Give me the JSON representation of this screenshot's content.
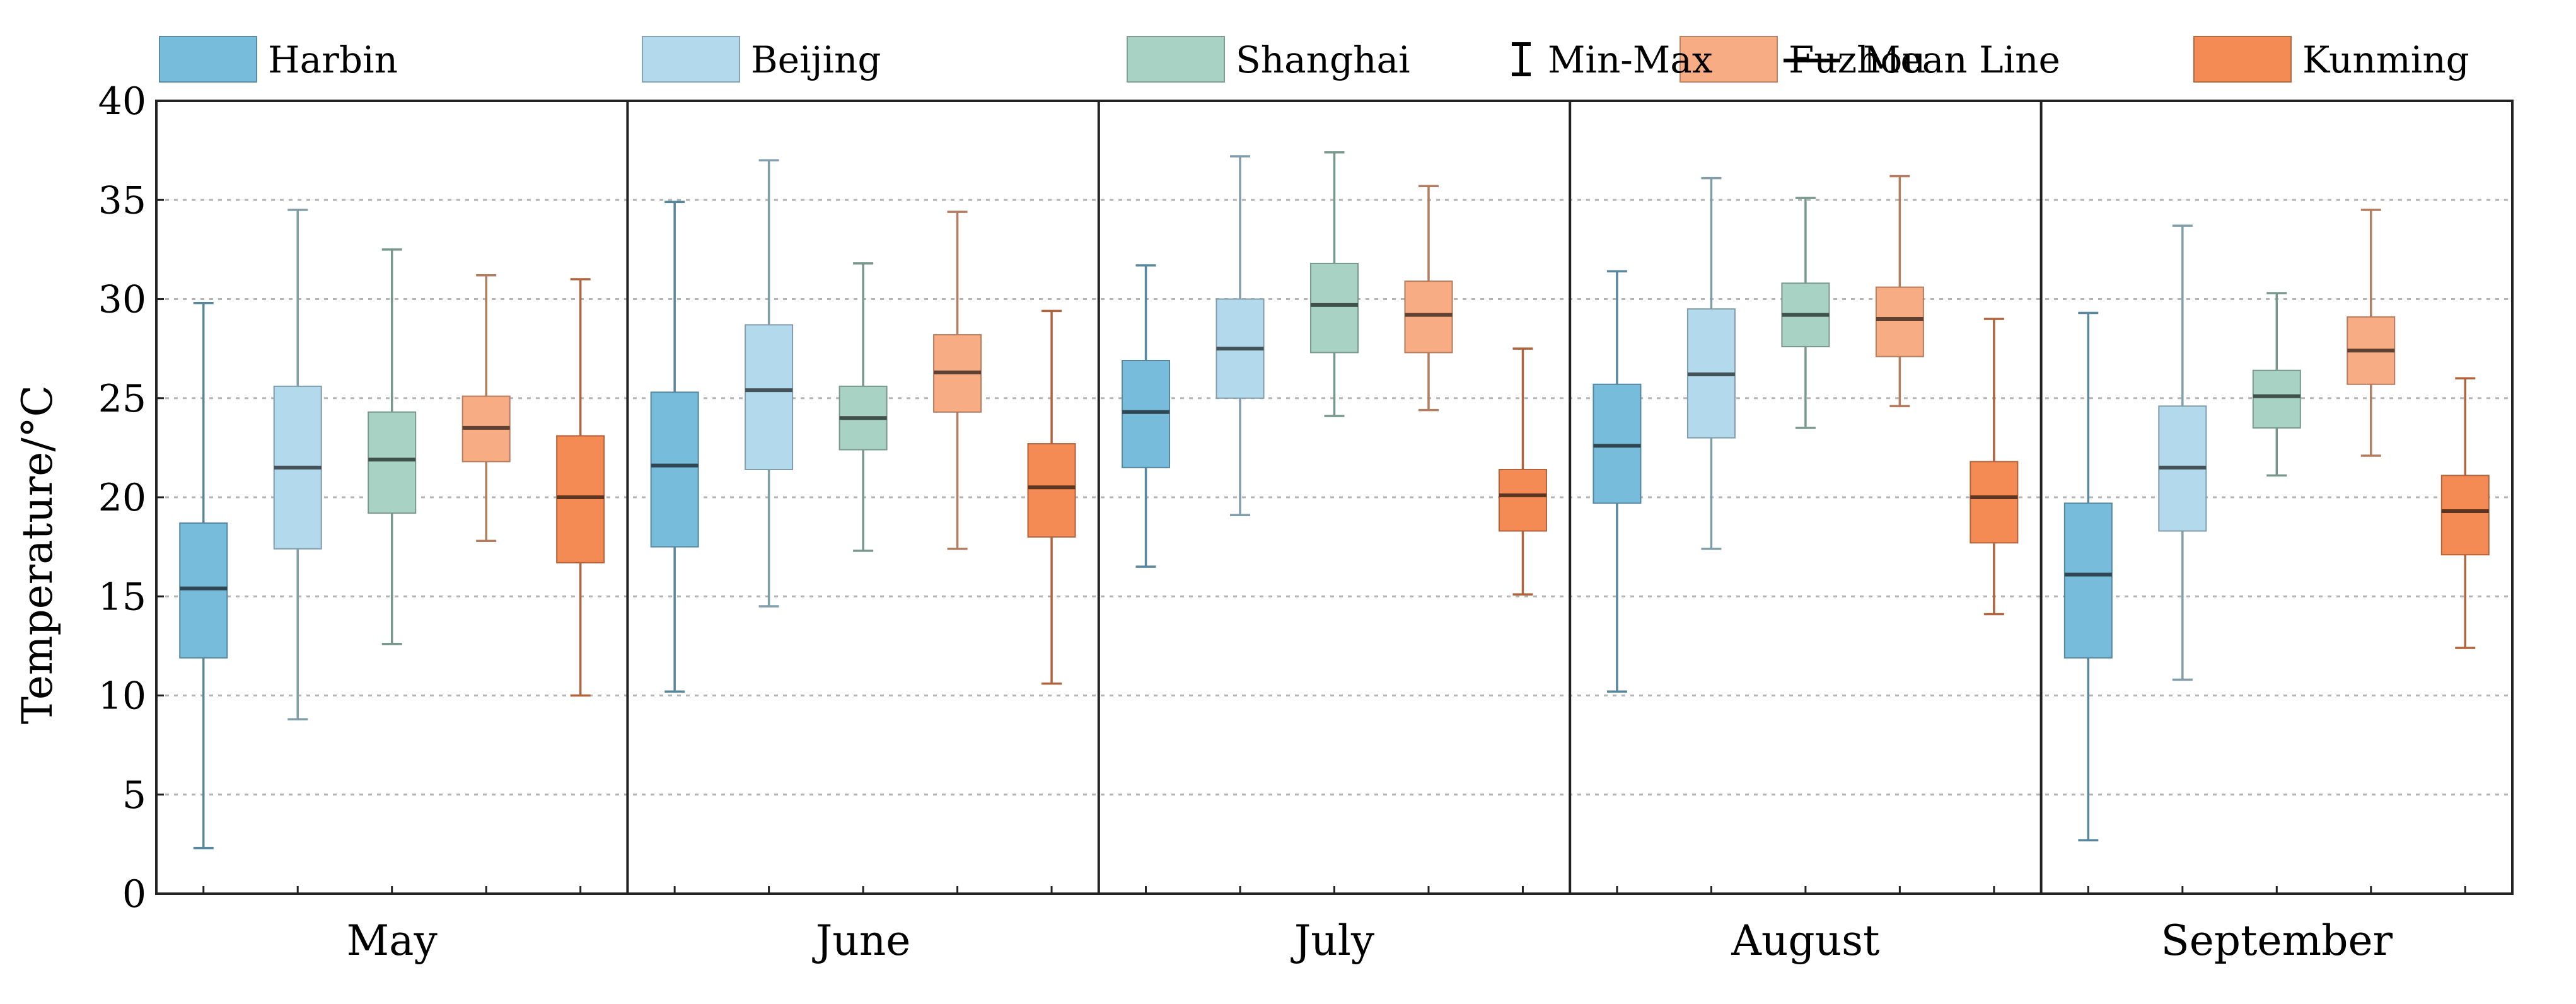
{
  "chart_data": {
    "type": "box",
    "ylabel": "Temperature/°C",
    "xlabel": "",
    "ylim": [
      0,
      40
    ],
    "yticks": [
      "0",
      "5",
      "10",
      "15",
      "20",
      "25",
      "30",
      "35",
      "40"
    ],
    "grid": "horizontal-dotted",
    "legend_position": "top",
    "legend": {
      "series": [
        "Harbin",
        "Beijing",
        "Shanghai",
        "Fuzhou",
        "Kunming"
      ],
      "minmax_label": "Min-Max",
      "mean_label": "Mean Line"
    },
    "categories": [
      "May",
      "June",
      "July",
      "August",
      "September"
    ],
    "series": [
      {
        "name": "Harbin",
        "color": "#78BCDB",
        "boxes": [
          {
            "min": 2.3,
            "q1": 11.9,
            "mean": 15.4,
            "q3": 18.7,
            "max": 29.8
          },
          {
            "min": 10.2,
            "q1": 17.5,
            "mean": 21.6,
            "q3": 25.3,
            "max": 34.9
          },
          {
            "min": 16.5,
            "q1": 21.5,
            "mean": 24.3,
            "q3": 26.9,
            "max": 31.7
          },
          {
            "min": 10.2,
            "q1": 19.7,
            "mean": 22.6,
            "q3": 25.7,
            "max": 31.4
          },
          {
            "min": 2.7,
            "q1": 11.9,
            "mean": 16.1,
            "q3": 19.7,
            "max": 29.3
          }
        ]
      },
      {
        "name": "Beijing",
        "color": "#B3DAEC",
        "boxes": [
          {
            "min": 8.8,
            "q1": 17.4,
            "mean": 21.5,
            "q3": 25.6,
            "max": 34.5
          },
          {
            "min": 14.5,
            "q1": 21.4,
            "mean": 25.4,
            "q3": 28.7,
            "max": 37.0
          },
          {
            "min": 19.1,
            "q1": 25.0,
            "mean": 27.5,
            "q3": 30.0,
            "max": 37.2
          },
          {
            "min": 17.4,
            "q1": 23.0,
            "mean": 26.2,
            "q3": 29.5,
            "max": 36.1
          },
          {
            "min": 10.8,
            "q1": 18.3,
            "mean": 21.5,
            "q3": 24.6,
            "max": 33.7
          }
        ]
      },
      {
        "name": "Shanghai",
        "color": "#A8D3C4",
        "boxes": [
          {
            "min": 12.6,
            "q1": 19.2,
            "mean": 21.9,
            "q3": 24.3,
            "max": 32.5
          },
          {
            "min": 17.3,
            "q1": 22.4,
            "mean": 24.0,
            "q3": 25.6,
            "max": 31.8
          },
          {
            "min": 24.1,
            "q1": 27.3,
            "mean": 29.7,
            "q3": 31.8,
            "max": 37.4
          },
          {
            "min": 23.5,
            "q1": 27.6,
            "mean": 29.2,
            "q3": 30.8,
            "max": 35.1
          },
          {
            "min": 21.1,
            "q1": 23.5,
            "mean": 25.1,
            "q3": 26.4,
            "max": 30.3
          }
        ]
      },
      {
        "name": "Fuzhou",
        "color": "#F8AC84",
        "boxes": [
          {
            "min": 17.8,
            "q1": 21.8,
            "mean": 23.5,
            "q3": 25.1,
            "max": 31.2
          },
          {
            "min": 17.4,
            "q1": 24.3,
            "mean": 26.3,
            "q3": 28.2,
            "max": 34.4
          },
          {
            "min": 24.4,
            "q1": 27.3,
            "mean": 29.2,
            "q3": 30.9,
            "max": 35.7
          },
          {
            "min": 24.6,
            "q1": 27.1,
            "mean": 29.0,
            "q3": 30.6,
            "max": 36.2
          },
          {
            "min": 22.1,
            "q1": 25.7,
            "mean": 27.4,
            "q3": 29.1,
            "max": 34.5
          }
        ]
      },
      {
        "name": "Kunming",
        "color": "#F48A54",
        "boxes": [
          {
            "min": 10.0,
            "q1": 16.7,
            "mean": 20.0,
            "q3": 23.1,
            "max": 31.0
          },
          {
            "min": 10.6,
            "q1": 18.0,
            "mean": 20.5,
            "q3": 22.7,
            "max": 29.4
          },
          {
            "min": 15.1,
            "q1": 18.3,
            "mean": 20.1,
            "q3": 21.4,
            "max": 27.5
          },
          {
            "min": 14.1,
            "q1": 17.7,
            "mean": 20.0,
            "q3": 21.8,
            "max": 29.0
          },
          {
            "min": 12.4,
            "q1": 17.1,
            "mean": 19.3,
            "q3": 21.1,
            "max": 26.0
          }
        ]
      }
    ]
  }
}
